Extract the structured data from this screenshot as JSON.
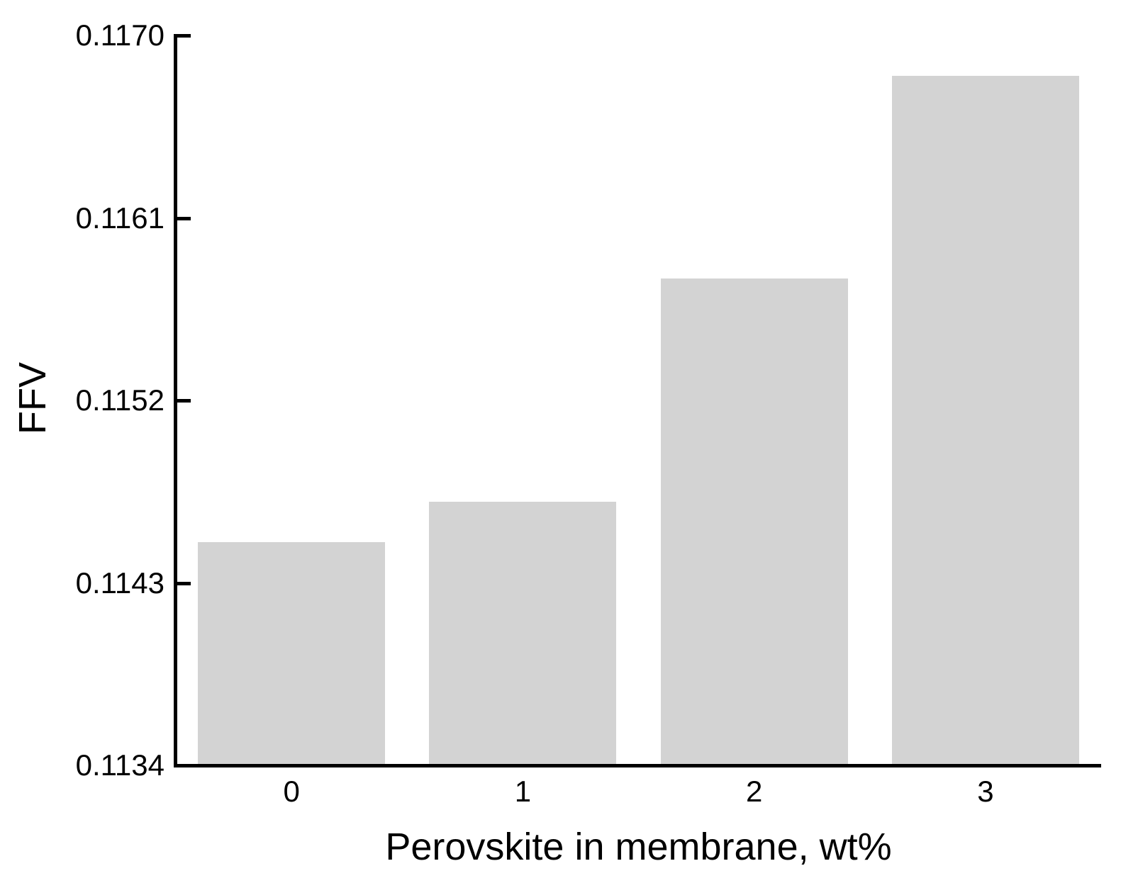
{
  "chart_data": {
    "type": "bar",
    "title": "",
    "xlabel": "Perovskite in membrane, wt%",
    "ylabel": "FFV",
    "categories": [
      "0",
      "1",
      "2",
      "3"
    ],
    "values": [
      0.1145,
      0.1147,
      0.1158,
      0.1168
    ],
    "ylim": [
      0.1134,
      0.117
    ],
    "yticks": [
      0.1134,
      0.1143,
      0.1152,
      0.1161,
      0.117
    ],
    "ytick_labels": [
      "0.1134",
      "0.1143",
      "0.1152",
      "0.1161",
      "0.1170"
    ],
    "grid": false,
    "legend_position": "none",
    "bar_color": "#d3d3d3",
    "axis_color": "#000000",
    "background_color": "#ffffff"
  }
}
